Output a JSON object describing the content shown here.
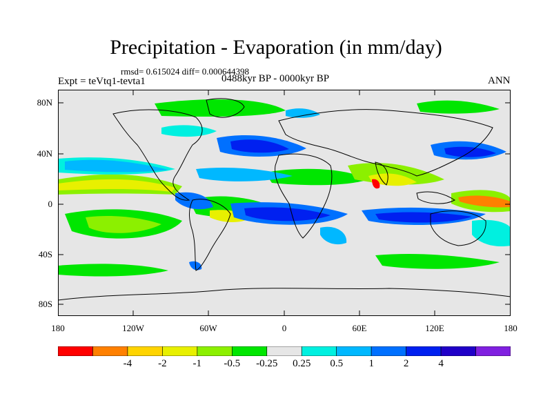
{
  "title": "Precipitation - Evaporation (in mm/day)",
  "stats": "rmsd= 0.615024 diff= 0.000644398",
  "experiment": "Expt = teVtq1-tevta1",
  "period": "0488kyr BP - 0000kyr BP",
  "season": "ANN",
  "lat_ticks": [
    "80N",
    "40N",
    "0",
    "40S",
    "80S"
  ],
  "lon_ticks": [
    "180",
    "120W",
    "60W",
    "0",
    "60E",
    "120E",
    "180"
  ],
  "colorbar": {
    "colors": [
      "#ff0000",
      "#ff8000",
      "#ffd400",
      "#e8f000",
      "#8cf000",
      "#00e600",
      "#e6e6e6",
      "#00f0e0",
      "#00b8ff",
      "#0070ff",
      "#0020f0",
      "#2000c8",
      "#8020e0"
    ],
    "labels": [
      "-4",
      "-2",
      "-1",
      "-0.5",
      "-0.25",
      "0.25",
      "0.5",
      "1",
      "2",
      "4"
    ]
  },
  "colors": {
    "background": "#e6e6e6",
    "strong_wet": "#0020f0",
    "wet": "#0070ff",
    "light_wet": "#00b8ff",
    "trace_wet": "#00f0e0",
    "dry_light": "#00e600",
    "dry": "#8cf000",
    "drier": "#e8f000",
    "very_dry": "#ff8000",
    "extreme_dry": "#ff0000"
  }
}
